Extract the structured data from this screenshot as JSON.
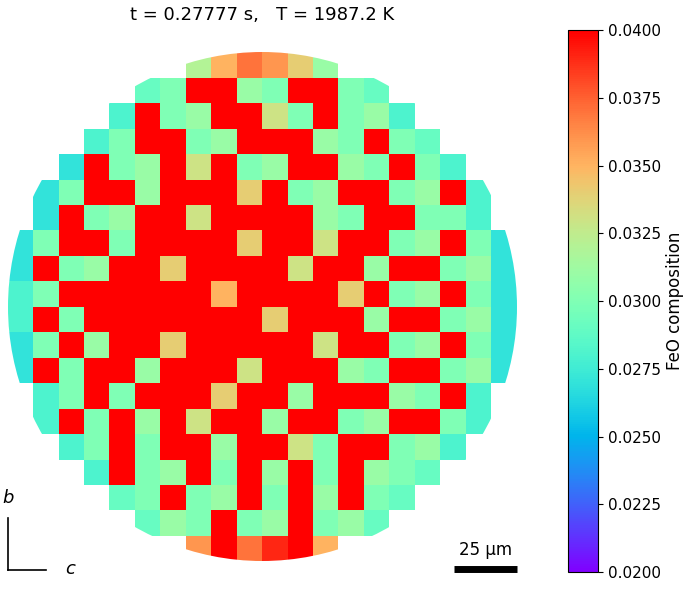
{
  "chart_data": {
    "type": "heatmap",
    "title": "t = 0.27777 s,   T = 1987.2 K",
    "tick_labels": false,
    "xlim": [
      -102,
      102
    ],
    "ylim": [
      -102,
      102
    ],
    "cells": [
      [
        null,
        null,
        null,
        null,
        null,
        null,
        null,
        0.032,
        0.035,
        0.037,
        0.036,
        0.034,
        0.031,
        null,
        null,
        null,
        null,
        null,
        null,
        null
      ],
      [
        null,
        null,
        null,
        null,
        null,
        0.029,
        0.03,
        0.04,
        0.04,
        0.031,
        0.03,
        0.04,
        0.04,
        0.03,
        0.029,
        null,
        null,
        null,
        null,
        null
      ],
      [
        null,
        null,
        null,
        null,
        0.028,
        0.04,
        0.03,
        0.031,
        0.04,
        0.04,
        0.033,
        0.03,
        0.04,
        0.03,
        0.031,
        0.028,
        null,
        null,
        null,
        null
      ],
      [
        null,
        null,
        null,
        0.028,
        0.03,
        0.04,
        0.04,
        0.03,
        0.031,
        0.04,
        0.04,
        0.04,
        0.031,
        0.03,
        0.04,
        0.03,
        0.029,
        null,
        null,
        null
      ],
      [
        null,
        null,
        0.027,
        0.04,
        0.03,
        0.031,
        0.04,
        0.033,
        0.04,
        0.03,
        0.031,
        0.04,
        0.04,
        0.031,
        0.03,
        0.04,
        0.03,
        0.028,
        null,
        null
      ],
      [
        null,
        0.027,
        0.03,
        0.04,
        0.04,
        0.031,
        0.04,
        0.04,
        0.04,
        0.034,
        0.04,
        0.03,
        0.031,
        0.04,
        0.04,
        0.03,
        0.031,
        0.04,
        0.028,
        null
      ],
      [
        null,
        0.027,
        0.04,
        0.03,
        0.031,
        0.04,
        0.04,
        0.033,
        0.04,
        0.04,
        0.04,
        0.04,
        0.031,
        0.03,
        0.04,
        0.04,
        0.03,
        0.03,
        0.028,
        null
      ],
      [
        0.027,
        0.03,
        0.04,
        0.04,
        0.03,
        0.04,
        0.04,
        0.04,
        0.04,
        0.034,
        0.04,
        0.04,
        0.033,
        0.04,
        0.04,
        0.03,
        0.031,
        0.04,
        0.03,
        0.027
      ],
      [
        0.027,
        0.04,
        0.03,
        0.031,
        0.04,
        0.04,
        0.034,
        0.04,
        0.04,
        0.04,
        0.04,
        0.033,
        0.04,
        0.04,
        0.031,
        0.04,
        0.04,
        0.03,
        0.031,
        0.027
      ],
      [
        0.028,
        0.03,
        0.04,
        0.04,
        0.04,
        0.04,
        0.04,
        0.04,
        0.035,
        0.04,
        0.04,
        0.04,
        0.04,
        0.034,
        0.04,
        0.03,
        0.031,
        0.04,
        0.03,
        0.027
      ],
      [
        0.028,
        0.04,
        0.03,
        0.04,
        0.04,
        0.04,
        0.04,
        0.04,
        0.04,
        0.04,
        0.034,
        0.04,
        0.04,
        0.04,
        0.031,
        0.04,
        0.04,
        0.03,
        0.031,
        0.027
      ],
      [
        0.027,
        0.03,
        0.04,
        0.031,
        0.04,
        0.04,
        0.034,
        0.04,
        0.04,
        0.04,
        0.04,
        0.04,
        0.033,
        0.04,
        0.04,
        0.03,
        0.031,
        0.04,
        0.03,
        0.027
      ],
      [
        0.027,
        0.04,
        0.03,
        0.04,
        0.04,
        0.031,
        0.04,
        0.04,
        0.04,
        0.033,
        0.04,
        0.04,
        0.04,
        0.031,
        0.03,
        0.04,
        0.04,
        0.03,
        0.031,
        0.027
      ],
      [
        null,
        0.028,
        0.03,
        0.04,
        0.03,
        0.04,
        0.04,
        0.04,
        0.034,
        0.04,
        0.04,
        0.031,
        0.04,
        0.04,
        0.04,
        0.031,
        0.03,
        0.04,
        0.028,
        null
      ],
      [
        null,
        0.028,
        0.04,
        0.03,
        0.04,
        0.031,
        0.04,
        0.033,
        0.04,
        0.04,
        0.031,
        0.04,
        0.04,
        0.03,
        0.031,
        0.04,
        0.04,
        0.03,
        0.028,
        null
      ],
      [
        null,
        null,
        0.028,
        0.03,
        0.04,
        0.03,
        0.04,
        0.04,
        0.031,
        0.04,
        0.04,
        0.033,
        0.03,
        0.04,
        0.04,
        0.03,
        0.031,
        0.028,
        null,
        null
      ],
      [
        null,
        null,
        null,
        0.028,
        0.04,
        0.03,
        0.031,
        0.04,
        0.03,
        0.04,
        0.031,
        0.04,
        0.03,
        0.04,
        0.031,
        0.03,
        0.029,
        null,
        null,
        null
      ],
      [
        null,
        null,
        null,
        null,
        0.029,
        0.03,
        0.04,
        0.03,
        0.031,
        0.04,
        0.03,
        0.04,
        0.031,
        0.04,
        0.03,
        0.029,
        null,
        null,
        null,
        null
      ],
      [
        null,
        null,
        null,
        null,
        null,
        0.029,
        0.031,
        0.03,
        0.04,
        0.03,
        0.031,
        0.04,
        0.03,
        0.031,
        0.029,
        null,
        null,
        null,
        null,
        null
      ],
      [
        null,
        null,
        null,
        null,
        null,
        null,
        null,
        0.036,
        0.04,
        0.037,
        0.039,
        0.04,
        0.035,
        null,
        null,
        null,
        null,
        null,
        null,
        null
      ]
    ],
    "colorbar": {
      "label": "FeO composition",
      "range": [
        0.02,
        0.04
      ],
      "ticks": [
        {
          "value": 0.02,
          "label": "0.0200"
        },
        {
          "value": 0.0225,
          "label": "0.0225"
        },
        {
          "value": 0.025,
          "label": "0.0250"
        },
        {
          "value": 0.0275,
          "label": "0.0275"
        },
        {
          "value": 0.03,
          "label": "0.0300"
        },
        {
          "value": 0.0325,
          "label": "0.0325"
        },
        {
          "value": 0.035,
          "label": "0.0350"
        },
        {
          "value": 0.0375,
          "label": "0.0375"
        },
        {
          "value": 0.04,
          "label": "0.0400"
        }
      ]
    },
    "axis_indicator": {
      "vertical": "b",
      "horizontal": "c"
    },
    "scale_bar": {
      "length": 25,
      "label": "25 μm"
    }
  }
}
